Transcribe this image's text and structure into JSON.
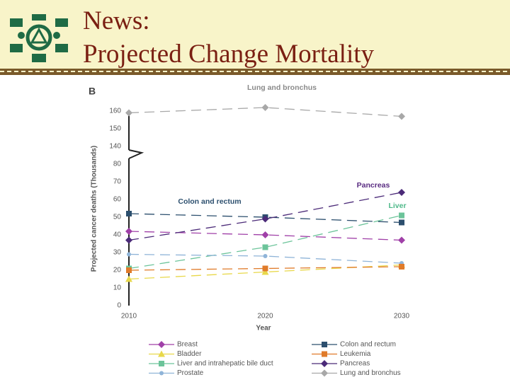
{
  "slide_title": [
    "News:",
    "Projected Change Mortality"
  ],
  "chart_data": {
    "type": "line",
    "panel_label": "B",
    "y_label": "Projected cancer deaths (Thousands)",
    "x_label": "Year",
    "x": [
      2010,
      2020,
      2030
    ],
    "xlim": [
      2010,
      2030
    ],
    "xticks": [
      2010,
      2020,
      2030
    ],
    "ylim": [
      0,
      160
    ],
    "axis_break": [
      80,
      140
    ],
    "yticks": [
      0,
      10,
      20,
      30,
      40,
      50,
      60,
      70,
      80,
      140,
      150,
      160
    ],
    "annotations": [
      {
        "text": "Lung and bronchus",
        "color": "#8a8a8a"
      },
      {
        "text": "Colon and rectum",
        "color": "#2c4f6e"
      },
      {
        "text": "Pancreas",
        "color": "#5a2d82"
      },
      {
        "text": "Liver",
        "color": "#4fb98a"
      }
    ],
    "series": [
      {
        "name": "Breast",
        "color": "#a040a8",
        "marker": "diamond",
        "values": [
          42,
          40,
          37
        ]
      },
      {
        "name": "Bladder",
        "color": "#e8d84a",
        "marker": "triangle",
        "values": [
          15,
          19,
          23
        ]
      },
      {
        "name": "Liver and intrahepatic bile duct",
        "color": "#6cc49a",
        "marker": "square",
        "values": [
          21,
          33,
          51
        ]
      },
      {
        "name": "Prostate",
        "color": "#8fb4d8",
        "marker": "circle",
        "values": [
          29,
          28,
          24
        ]
      },
      {
        "name": "Colon and rectum",
        "color": "#2c4f6e",
        "marker": "square",
        "values": [
          52,
          50,
          47
        ]
      },
      {
        "name": "Leukemia",
        "color": "#e07b2a",
        "marker": "square",
        "values": [
          20,
          21,
          22
        ]
      },
      {
        "name": "Pancreas",
        "color": "#4b2a78",
        "marker": "diamond",
        "values": [
          37,
          49,
          64
        ]
      },
      {
        "name": "Lung and bronchus",
        "color": "#a8a8a8",
        "marker": "diamond",
        "values": [
          159,
          162,
          157
        ]
      }
    ]
  }
}
